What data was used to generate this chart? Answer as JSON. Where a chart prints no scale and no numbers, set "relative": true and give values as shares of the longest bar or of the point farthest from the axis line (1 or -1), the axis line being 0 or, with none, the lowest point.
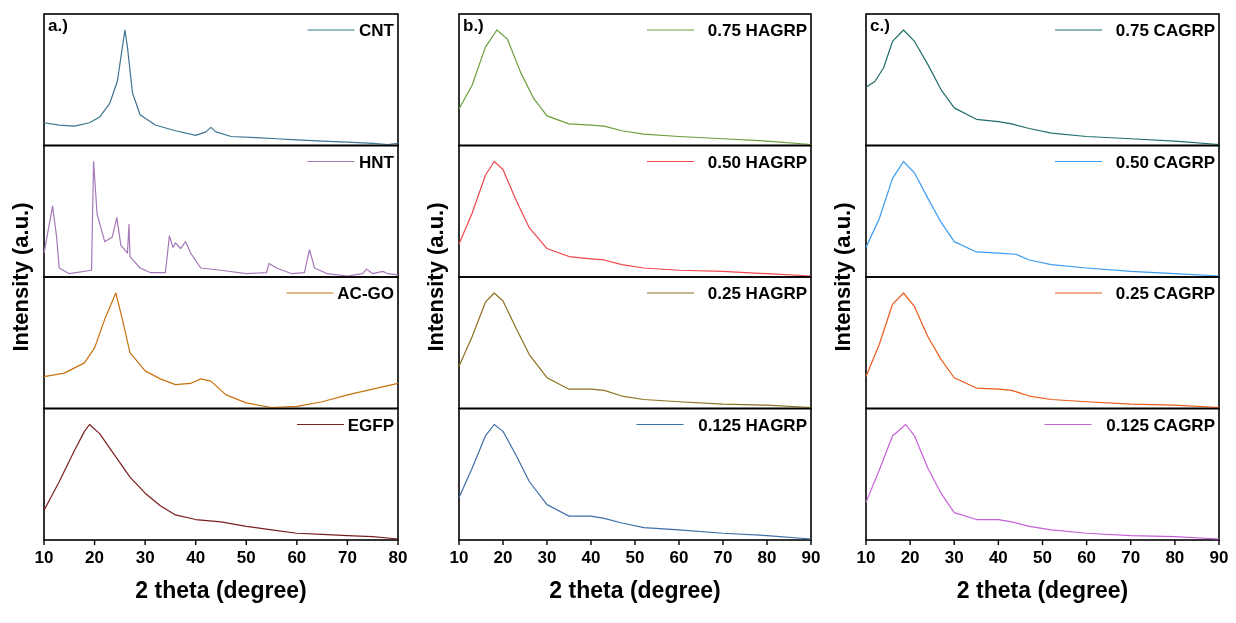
{
  "chart_data": [
    {
      "type": "line",
      "relative": true,
      "legend": "top right",
      "tick_labels": false,
      "ylabel": "Intensity (a.u.)",
      "annotations": [
        "a.)"
      ],
      "xlim": [
        10,
        80
      ],
      "series": [
        {
          "name": "CNT",
          "color": "#3d7590",
          "x": [
            10,
            13,
            16,
            19,
            21,
            23,
            24.5,
            25.5,
            26,
            26.5,
            27.5,
            29,
            32,
            36,
            40,
            42,
            43,
            44,
            47,
            52,
            56,
            60,
            65,
            70,
            75,
            78,
            80
          ],
          "values": [
            0.19,
            0.17,
            0.16,
            0.19,
            0.24,
            0.36,
            0.55,
            0.85,
            1.0,
            0.85,
            0.45,
            0.26,
            0.17,
            0.12,
            0.08,
            0.11,
            0.15,
            0.11,
            0.07,
            0.06,
            0.05,
            0.04,
            0.03,
            0.02,
            0.01,
            0.0,
            0.01
          ]
        }
      ]
    },
    {
      "type": "line",
      "relative": true,
      "legend": "top right",
      "tick_labels": false,
      "xlim": [
        10,
        80
      ],
      "series": [
        {
          "name": "HNT",
          "color": "#a677b8",
          "x": [
            10,
            11.7,
            12.5,
            13,
            15,
            19.4,
            19.8,
            20.5,
            22,
            23.5,
            24.4,
            25.2,
            26.5,
            26.8,
            27,
            29,
            31,
            34,
            34.8,
            35.5,
            36,
            37,
            38,
            39,
            41,
            45,
            50,
            54,
            54.5,
            56,
            59,
            61.5,
            62.5,
            63.5,
            66,
            70,
            73,
            73.8,
            75,
            77,
            78,
            80
          ],
          "values": [
            0.2,
            0.61,
            0.34,
            0.07,
            0.02,
            0.05,
            1.0,
            0.54,
            0.3,
            0.34,
            0.51,
            0.27,
            0.2,
            0.45,
            0.17,
            0.07,
            0.03,
            0.03,
            0.35,
            0.25,
            0.29,
            0.24,
            0.3,
            0.2,
            0.07,
            0.05,
            0.02,
            0.03,
            0.11,
            0.07,
            0.02,
            0.03,
            0.23,
            0.07,
            0.02,
            0.0,
            0.02,
            0.06,
            0.02,
            0.04,
            0.02,
            0.01
          ]
        }
      ]
    },
    {
      "type": "line",
      "relative": true,
      "legend": "top right",
      "tick_labels": false,
      "xlim": [
        10,
        80
      ],
      "series": [
        {
          "name": "AC-GO",
          "color": "#c9710e",
          "x": [
            10,
            14,
            18,
            20,
            22,
            24.2,
            25.5,
            27,
            30,
            33,
            36,
            39,
            41,
            43,
            46,
            50,
            55,
            60,
            65,
            70,
            75,
            80
          ],
          "values": [
            0.27,
            0.3,
            0.39,
            0.52,
            0.77,
            1.0,
            0.77,
            0.48,
            0.32,
            0.25,
            0.2,
            0.21,
            0.25,
            0.23,
            0.11,
            0.04,
            0.0,
            0.01,
            0.05,
            0.11,
            0.16,
            0.21
          ]
        }
      ]
    },
    {
      "type": "line",
      "relative": true,
      "legend": "top right",
      "tick_labels": "x",
      "xlabel": "2 theta (degree)",
      "xlim": [
        10,
        80
      ],
      "xticks": [
        10,
        20,
        30,
        40,
        50,
        60,
        70,
        80
      ],
      "series": [
        {
          "name": "EGFP",
          "color": "#7a1e20",
          "x": [
            10,
            13,
            16,
            18,
            19,
            21,
            24,
            27,
            30,
            33,
            36,
            40,
            45,
            50,
            55,
            60,
            65,
            70,
            75,
            80
          ],
          "values": [
            0.25,
            0.5,
            0.77,
            0.94,
            1.0,
            0.92,
            0.73,
            0.54,
            0.4,
            0.29,
            0.21,
            0.17,
            0.15,
            0.11,
            0.08,
            0.05,
            0.04,
            0.03,
            0.02,
            0.0
          ]
        }
      ]
    },
    {
      "type": "line",
      "relative": true,
      "legend": "top right",
      "tick_labels": false,
      "ylabel": "Intensity (a.u.)",
      "annotations": [
        "b.)"
      ],
      "xlim": [
        10,
        90
      ],
      "series": [
        {
          "name": "0.75 HAGRP",
          "color": "#6b9e3a",
          "x": [
            10,
            13,
            16,
            18.6,
            21,
            24,
            27,
            30,
            35,
            40,
            43,
            47,
            52,
            60,
            70,
            80,
            90
          ],
          "values": [
            0.31,
            0.52,
            0.85,
            1.0,
            0.92,
            0.63,
            0.4,
            0.25,
            0.18,
            0.17,
            0.16,
            0.12,
            0.09,
            0.07,
            0.05,
            0.03,
            0.0
          ]
        }
      ]
    },
    {
      "type": "line",
      "relative": true,
      "legend": "top right",
      "tick_labels": false,
      "xlim": [
        10,
        90
      ],
      "series": [
        {
          "name": "0.50 HAGRP",
          "color": "#f0454d",
          "x": [
            10,
            13,
            16,
            18,
            20,
            23,
            26,
            30,
            35,
            40,
            43,
            47,
            52,
            60,
            70,
            80,
            90
          ],
          "values": [
            0.28,
            0.55,
            0.88,
            1.0,
            0.93,
            0.66,
            0.42,
            0.24,
            0.17,
            0.15,
            0.14,
            0.1,
            0.07,
            0.05,
            0.04,
            0.02,
            0.0
          ]
        }
      ]
    },
    {
      "type": "line",
      "relative": true,
      "legend": "top right",
      "tick_labels": false,
      "xlim": [
        10,
        90
      ],
      "series": [
        {
          "name": "0.25 HAGRP",
          "color": "#8c7020",
          "x": [
            10,
            13,
            16,
            18,
            20,
            23,
            26,
            30,
            35,
            40,
            43,
            47,
            52,
            60,
            70,
            80,
            90
          ],
          "values": [
            0.36,
            0.62,
            0.92,
            1.0,
            0.93,
            0.69,
            0.46,
            0.26,
            0.16,
            0.16,
            0.15,
            0.1,
            0.07,
            0.05,
            0.03,
            0.02,
            0.0
          ]
        }
      ]
    },
    {
      "type": "line",
      "relative": true,
      "legend": "top right",
      "tick_labels": "x",
      "xlabel": "2 theta (degree)",
      "xlim": [
        10,
        90
      ],
      "xticks": [
        10,
        20,
        30,
        40,
        50,
        60,
        70,
        80,
        90
      ],
      "series": [
        {
          "name": "0.125 HAGRP",
          "color": "#3e6fa8",
          "x": [
            10,
            13,
            16,
            18,
            20,
            23,
            26,
            30,
            35,
            40,
            43,
            47,
            52,
            60,
            70,
            80,
            90
          ],
          "values": [
            0.36,
            0.62,
            0.9,
            1.0,
            0.94,
            0.73,
            0.5,
            0.3,
            0.2,
            0.2,
            0.18,
            0.14,
            0.1,
            0.08,
            0.05,
            0.03,
            0.0
          ]
        }
      ]
    },
    {
      "type": "line",
      "relative": true,
      "legend": "top right",
      "tick_labels": false,
      "ylabel": "Intensity (a.u.)",
      "annotations": [
        "c.)"
      ],
      "xlim": [
        10,
        90
      ],
      "series": [
        {
          "name": "0.75 CAGRP",
          "color": "#1f6e6a",
          "x": [
            10,
            12,
            14,
            16,
            18.5,
            21,
            24,
            27,
            30,
            35,
            40,
            43,
            47,
            52,
            60,
            70,
            80,
            90
          ],
          "values": [
            0.5,
            0.55,
            0.67,
            0.9,
            1.0,
            0.9,
            0.7,
            0.48,
            0.32,
            0.22,
            0.2,
            0.18,
            0.14,
            0.1,
            0.07,
            0.05,
            0.03,
            0.0
          ]
        }
      ]
    },
    {
      "type": "line",
      "relative": true,
      "legend": "top right",
      "tick_labels": false,
      "xlim": [
        10,
        90
      ],
      "series": [
        {
          "name": "0.50 CAGRP",
          "color": "#3a9bf0",
          "x": [
            10,
            13,
            16,
            18.5,
            21,
            24,
            27,
            30,
            35,
            40,
            44,
            47,
            52,
            60,
            70,
            80,
            90
          ],
          "values": [
            0.25,
            0.5,
            0.85,
            1.0,
            0.9,
            0.68,
            0.47,
            0.3,
            0.21,
            0.2,
            0.19,
            0.14,
            0.1,
            0.07,
            0.04,
            0.02,
            0.0
          ]
        }
      ]
    },
    {
      "type": "line",
      "relative": true,
      "legend": "top right",
      "tick_labels": false,
      "xlim": [
        10,
        90
      ],
      "series": [
        {
          "name": "0.25 CAGRP",
          "color": "#eb5a1a",
          "x": [
            10,
            13,
            16,
            18.5,
            21,
            24,
            27,
            30,
            35,
            40,
            43,
            47,
            52,
            60,
            70,
            80,
            90
          ],
          "values": [
            0.27,
            0.55,
            0.9,
            1.0,
            0.88,
            0.62,
            0.42,
            0.26,
            0.17,
            0.16,
            0.15,
            0.1,
            0.07,
            0.05,
            0.03,
            0.02,
            0.0
          ]
        }
      ]
    },
    {
      "type": "line",
      "relative": true,
      "legend": "top right",
      "tick_labels": "x",
      "xlabel": "2 theta (degree)",
      "xlim": [
        10,
        90
      ],
      "xticks": [
        10,
        20,
        30,
        40,
        50,
        60,
        70,
        80,
        90
      ],
      "series": [
        {
          "name": "0.125 CAGRP",
          "color": "#c660d8",
          "x": [
            10,
            13,
            16,
            19,
            21,
            24,
            27,
            30,
            35,
            40,
            43,
            47,
            52,
            60,
            70,
            80,
            90
          ],
          "values": [
            0.32,
            0.6,
            0.9,
            1.0,
            0.9,
            0.62,
            0.4,
            0.23,
            0.17,
            0.17,
            0.15,
            0.11,
            0.08,
            0.05,
            0.03,
            0.02,
            0.0
          ]
        }
      ]
    }
  ]
}
